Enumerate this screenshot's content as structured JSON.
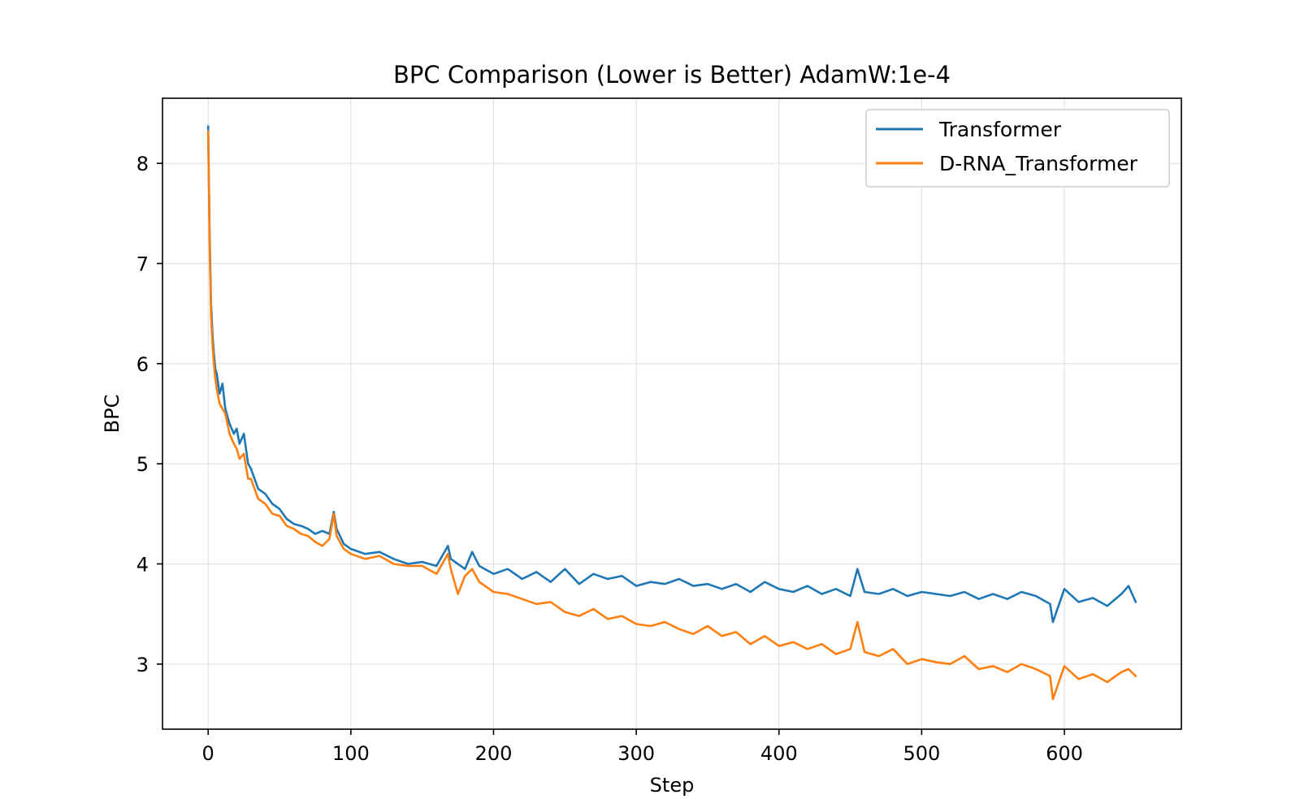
{
  "chart_data": {
    "type": "line",
    "title": "BPC Comparison (Lower is Better) AdamW:1e-4",
    "xlabel": "Step",
    "ylabel": "BPC",
    "xlim": [
      -32,
      682
    ],
    "ylim": [
      2.35,
      8.65
    ],
    "xticks": [
      0,
      100,
      200,
      300,
      400,
      500,
      600
    ],
    "yticks": [
      3,
      4,
      5,
      6,
      7,
      8
    ],
    "grid": true,
    "legend_position": "top-right",
    "series": [
      {
        "name": "Transformer",
        "color": "#1f77b4",
        "x": [
          0,
          1,
          2,
          3,
          4,
          5,
          6,
          8,
          10,
          12,
          15,
          18,
          20,
          22,
          25,
          28,
          30,
          35,
          40,
          45,
          50,
          55,
          60,
          65,
          70,
          75,
          80,
          85,
          88,
          90,
          95,
          100,
          110,
          120,
          130,
          140,
          150,
          160,
          168,
          170,
          180,
          185,
          190,
          200,
          210,
          220,
          230,
          240,
          250,
          260,
          270,
          280,
          290,
          300,
          310,
          320,
          330,
          340,
          350,
          360,
          370,
          380,
          390,
          400,
          410,
          420,
          430,
          440,
          450,
          455,
          460,
          470,
          480,
          490,
          500,
          510,
          520,
          530,
          540,
          550,
          560,
          570,
          580,
          590,
          592,
          600,
          610,
          620,
          630,
          640,
          645,
          650
        ],
        "y": [
          8.37,
          7.3,
          6.6,
          6.3,
          6.1,
          5.95,
          5.9,
          5.7,
          5.8,
          5.55,
          5.4,
          5.3,
          5.35,
          5.2,
          5.3,
          5.0,
          4.95,
          4.75,
          4.7,
          4.6,
          4.55,
          4.45,
          4.4,
          4.38,
          4.35,
          4.3,
          4.33,
          4.3,
          4.52,
          4.35,
          4.2,
          4.15,
          4.1,
          4.12,
          4.05,
          4.0,
          4.02,
          3.98,
          4.18,
          4.05,
          3.95,
          4.12,
          3.98,
          3.9,
          3.95,
          3.85,
          3.92,
          3.82,
          3.95,
          3.8,
          3.9,
          3.85,
          3.88,
          3.78,
          3.82,
          3.8,
          3.85,
          3.78,
          3.8,
          3.75,
          3.8,
          3.72,
          3.82,
          3.75,
          3.72,
          3.78,
          3.7,
          3.75,
          3.68,
          3.95,
          3.72,
          3.7,
          3.75,
          3.68,
          3.72,
          3.7,
          3.68,
          3.72,
          3.65,
          3.7,
          3.65,
          3.72,
          3.68,
          3.6,
          3.42,
          3.75,
          3.62,
          3.66,
          3.58,
          3.7,
          3.78,
          3.62
        ]
      },
      {
        "name": "D-RNA_Transformer",
        "color": "#ff7f0e",
        "x": [
          0,
          1,
          2,
          3,
          4,
          5,
          6,
          8,
          10,
          12,
          15,
          18,
          20,
          22,
          25,
          28,
          30,
          35,
          40,
          45,
          50,
          55,
          60,
          65,
          70,
          75,
          80,
          85,
          88,
          90,
          95,
          100,
          110,
          120,
          130,
          140,
          150,
          160,
          168,
          170,
          175,
          180,
          185,
          190,
          200,
          210,
          220,
          230,
          240,
          250,
          260,
          270,
          280,
          290,
          300,
          310,
          320,
          330,
          340,
          350,
          360,
          370,
          380,
          390,
          400,
          410,
          420,
          430,
          440,
          450,
          455,
          460,
          470,
          480,
          490,
          500,
          510,
          520,
          530,
          540,
          550,
          560,
          570,
          580,
          590,
          592,
          600,
          610,
          620,
          630,
          640,
          645,
          650
        ],
        "y": [
          8.32,
          7.2,
          6.5,
          6.2,
          6.0,
          5.85,
          5.75,
          5.6,
          5.55,
          5.5,
          5.3,
          5.2,
          5.15,
          5.05,
          5.1,
          4.85,
          4.85,
          4.65,
          4.6,
          4.5,
          4.48,
          4.38,
          4.35,
          4.3,
          4.28,
          4.22,
          4.18,
          4.25,
          4.5,
          4.28,
          4.15,
          4.1,
          4.05,
          4.08,
          4.0,
          3.98,
          3.98,
          3.9,
          4.1,
          3.95,
          3.7,
          3.88,
          3.95,
          3.82,
          3.72,
          3.7,
          3.65,
          3.6,
          3.62,
          3.52,
          3.48,
          3.55,
          3.45,
          3.48,
          3.4,
          3.38,
          3.42,
          3.35,
          3.3,
          3.38,
          3.28,
          3.32,
          3.2,
          3.28,
          3.18,
          3.22,
          3.15,
          3.2,
          3.1,
          3.15,
          3.42,
          3.12,
          3.08,
          3.15,
          3.0,
          3.05,
          3.02,
          3.0,
          3.08,
          2.95,
          2.98,
          2.92,
          3.0,
          2.95,
          2.88,
          2.65,
          2.98,
          2.85,
          2.9,
          2.82,
          2.92,
          2.95,
          2.88
        ]
      }
    ]
  }
}
